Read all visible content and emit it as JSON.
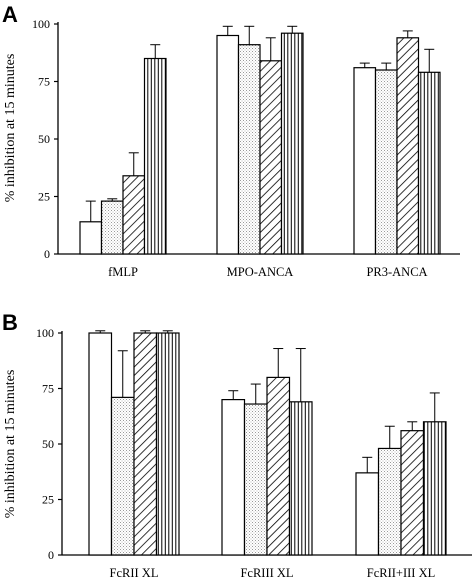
{
  "chart_data": [
    {
      "panel": "A",
      "type": "bar",
      "ylabel": "% inhibition at 15 minutes",
      "ylim": [
        0,
        100
      ],
      "yticks": [
        "0",
        "25",
        "50",
        "75",
        "100"
      ],
      "categories": [
        "fMLP",
        "MPO-ANCA",
        "PR3-ANCA"
      ],
      "bar_fills": [
        "white",
        "dotted",
        "hatched",
        "vertical-lines"
      ],
      "values": [
        [
          14,
          23,
          34,
          85
        ],
        [
          95,
          91,
          84,
          96
        ],
        [
          81,
          80,
          94,
          79
        ]
      ],
      "errors": [
        [
          9,
          1,
          10,
          6
        ],
        [
          4,
          8,
          10,
          3
        ],
        [
          2,
          3,
          3,
          10
        ]
      ],
      "grid": false
    },
    {
      "panel": "B",
      "type": "bar",
      "ylabel": "% inhibition at 15 minutes",
      "ylim": [
        0,
        100
      ],
      "yticks": [
        "0",
        "25",
        "50",
        "75",
        "100"
      ],
      "categories": [
        "FcRII XL",
        "FcRIII XL",
        "FcRII+III XL"
      ],
      "bar_fills": [
        "white",
        "dotted",
        "hatched",
        "vertical-lines"
      ],
      "values": [
        [
          100,
          71,
          100,
          100
        ],
        [
          70,
          68,
          80,
          69
        ],
        [
          37,
          48,
          56,
          60
        ]
      ],
      "errors": [
        [
          1,
          21,
          1,
          1
        ],
        [
          4,
          9,
          13,
          24
        ],
        [
          7,
          10,
          4,
          13
        ]
      ],
      "grid": false
    }
  ]
}
